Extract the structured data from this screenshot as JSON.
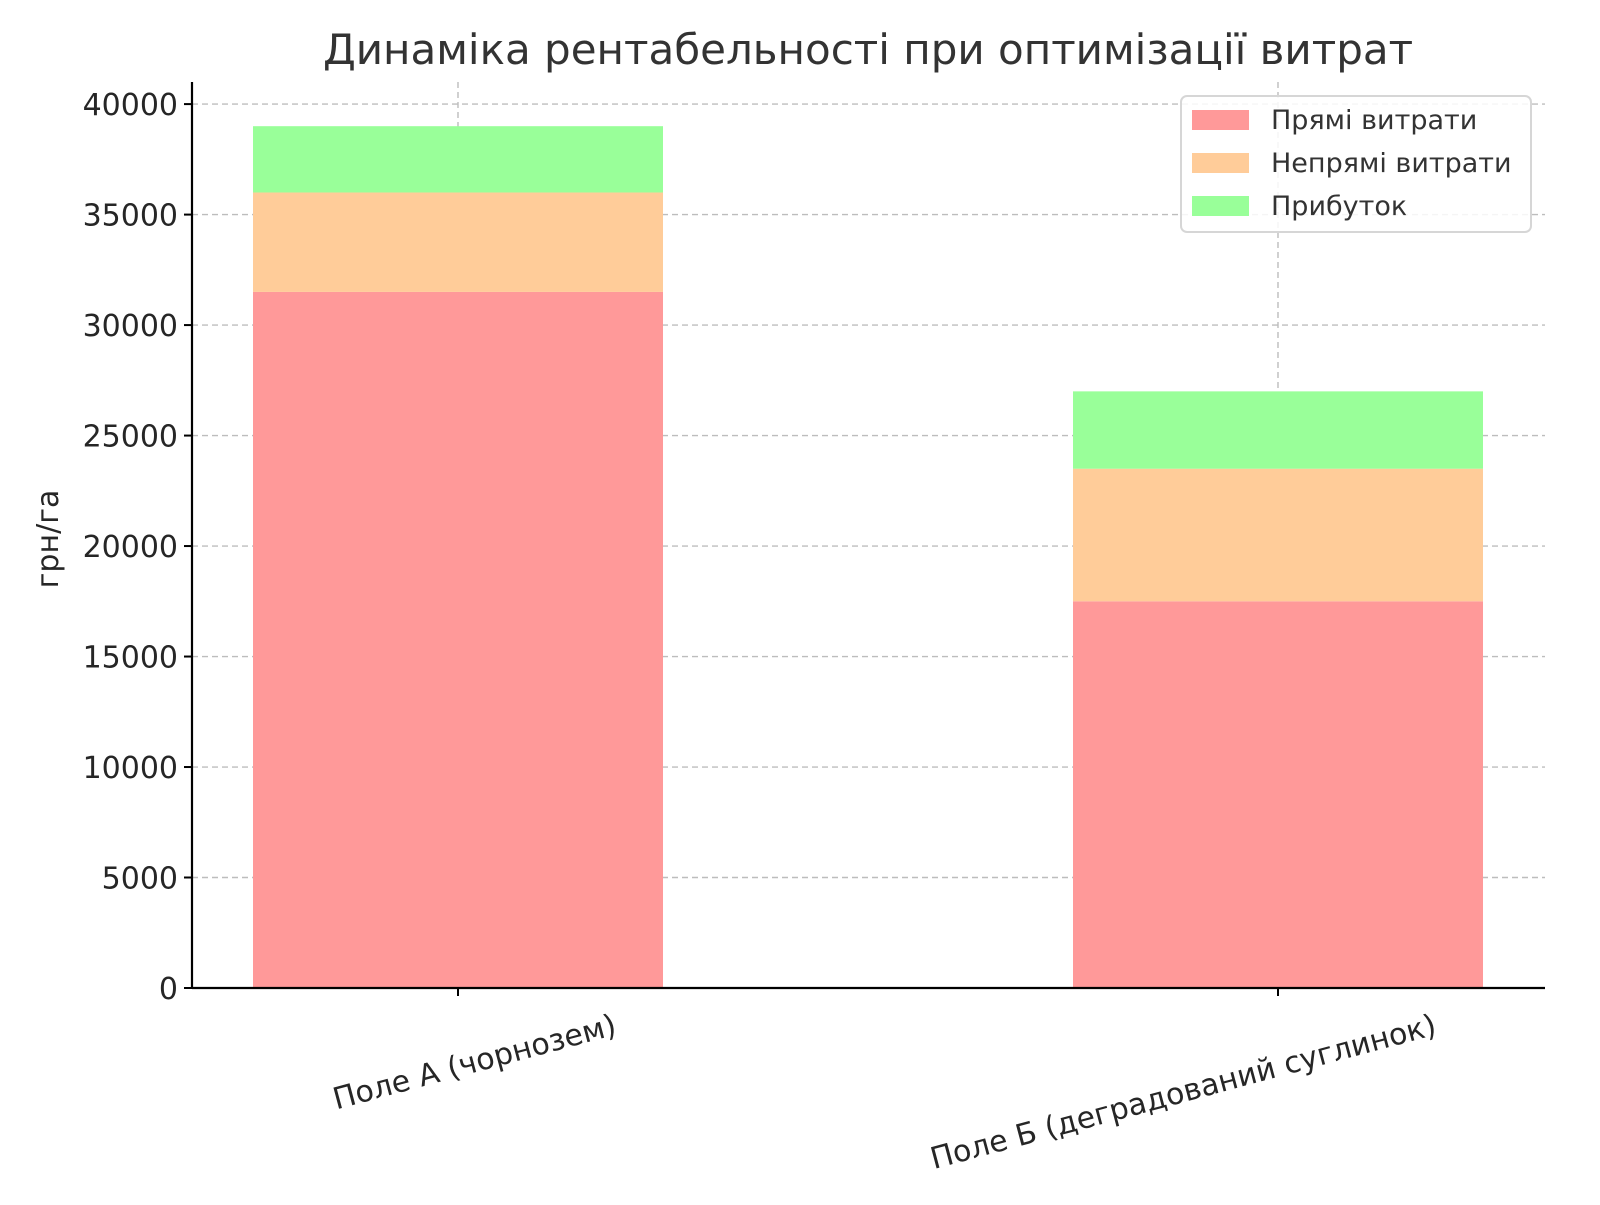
{
  "chart_data": {
    "type": "bar",
    "stacked": true,
    "title": "Динаміка рентабельності при оптимізації витрат",
    "xlabel": "",
    "ylabel": "грн/га",
    "categories": [
      "Поле А (чорнозем)",
      "Поле Б (деградований суглинок)"
    ],
    "series": [
      {
        "name": "Прямі витрати",
        "values": [
          31500,
          17500
        ],
        "color": "#ff9999"
      },
      {
        "name": "Непрямі витрати",
        "values": [
          4500,
          6000
        ],
        "color": "#ffcc99"
      },
      {
        "name": "Прибуток",
        "values": [
          3000,
          3500
        ],
        "color": "#99ff99"
      }
    ],
    "ylim": [
      0,
      41000
    ],
    "yticks": [
      0,
      5000,
      10000,
      15000,
      20000,
      25000,
      30000,
      35000,
      40000
    ],
    "grid": true,
    "legend_position": "top-right"
  }
}
